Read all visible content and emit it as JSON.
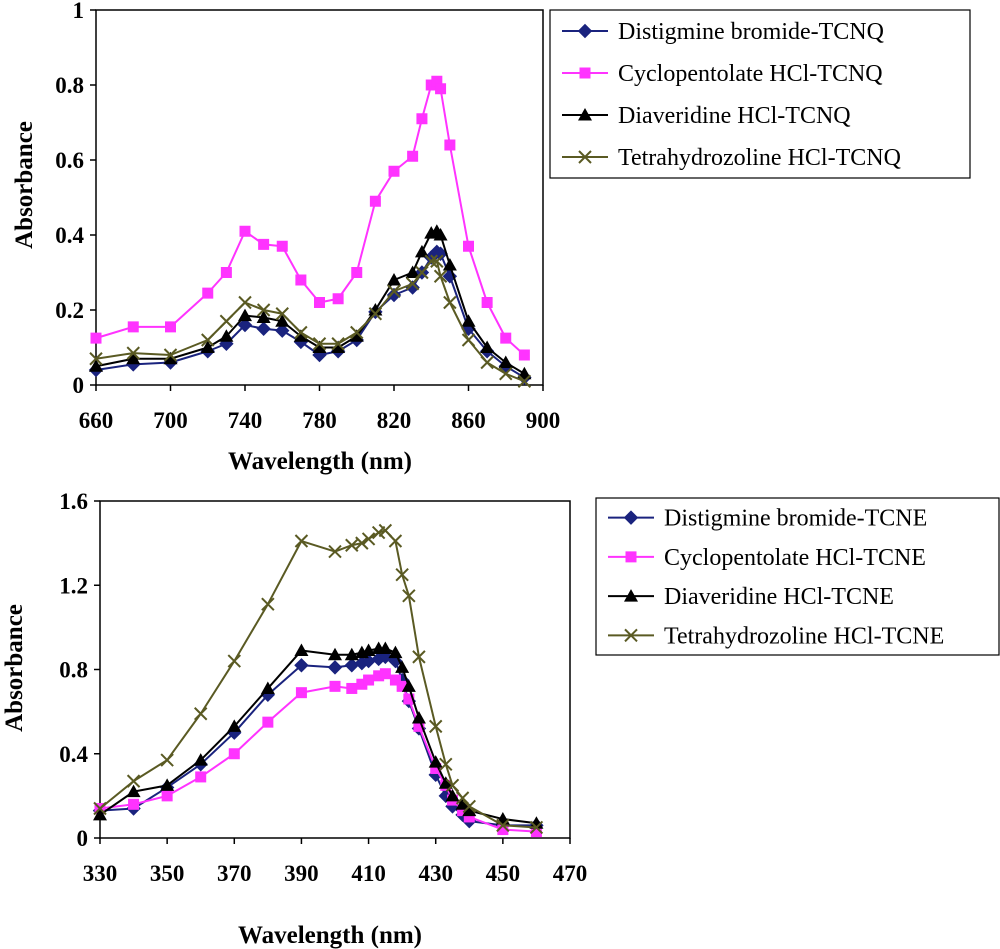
{
  "chart_data": [
    {
      "type": "line",
      "xlabel": "Wavelength (nm)",
      "ylabel": "Absorbance",
      "xlim": [
        660,
        900
      ],
      "ylim": [
        0,
        1
      ],
      "xticks": [
        "660",
        "700",
        "740",
        "780",
        "820",
        "860",
        "900"
      ],
      "yticks": [
        "0",
        "0.2",
        "0.4",
        "0.6",
        "0.8",
        "1"
      ],
      "grid": false,
      "legend_position": "right",
      "series": [
        {
          "name": "Distigmine bromide-TCNQ",
          "color": "#1a237e",
          "marker": "diamond",
          "x": [
            660,
            680,
            700,
            720,
            730,
            740,
            750,
            760,
            770,
            780,
            790,
            800,
            810,
            820,
            830,
            835,
            840,
            843,
            845,
            850,
            860,
            870,
            880,
            890
          ],
          "y": [
            0.04,
            0.055,
            0.06,
            0.09,
            0.11,
            0.16,
            0.15,
            0.145,
            0.115,
            0.08,
            0.09,
            0.12,
            0.195,
            0.24,
            0.26,
            0.3,
            0.34,
            0.355,
            0.35,
            0.29,
            0.15,
            0.09,
            0.05,
            0.02
          ]
        },
        {
          "name": "Cyclopentolate HCl-TCNQ",
          "color": "#ff33ff",
          "marker": "square",
          "x": [
            660,
            680,
            700,
            720,
            730,
            740,
            750,
            760,
            770,
            780,
            790,
            800,
            810,
            820,
            830,
            835,
            840,
            843,
            845,
            850,
            860,
            870,
            880,
            890
          ],
          "y": [
            0.125,
            0.155,
            0.155,
            0.245,
            0.3,
            0.41,
            0.375,
            0.37,
            0.28,
            0.22,
            0.23,
            0.3,
            0.49,
            0.57,
            0.61,
            0.71,
            0.8,
            0.81,
            0.79,
            0.64,
            0.37,
            0.22,
            0.125,
            0.08
          ]
        },
        {
          "name": "Diaveridine HCl-TCNQ",
          "color": "#000000",
          "marker": "triangle",
          "x": [
            660,
            680,
            700,
            720,
            730,
            740,
            750,
            760,
            770,
            780,
            790,
            800,
            810,
            820,
            830,
            835,
            840,
            843,
            845,
            850,
            860,
            870,
            880,
            890
          ],
          "y": [
            0.05,
            0.07,
            0.07,
            0.1,
            0.13,
            0.185,
            0.18,
            0.17,
            0.13,
            0.1,
            0.1,
            0.13,
            0.2,
            0.28,
            0.3,
            0.355,
            0.405,
            0.41,
            0.4,
            0.32,
            0.17,
            0.1,
            0.06,
            0.03
          ]
        },
        {
          "name": "Tetrahydrozoline HCl-TCNQ",
          "color": "#5a5a23",
          "marker": "x",
          "x": [
            660,
            680,
            700,
            720,
            730,
            740,
            750,
            760,
            770,
            780,
            790,
            800,
            810,
            820,
            830,
            835,
            840,
            843,
            845,
            850,
            860,
            870,
            880,
            890
          ],
          "y": [
            0.07,
            0.085,
            0.08,
            0.12,
            0.17,
            0.22,
            0.2,
            0.19,
            0.14,
            0.11,
            0.11,
            0.14,
            0.19,
            0.25,
            0.27,
            0.3,
            0.33,
            0.33,
            0.29,
            0.22,
            0.12,
            0.06,
            0.03,
            0.01
          ]
        }
      ]
    },
    {
      "type": "line",
      "xlabel": "Wavelength (nm)",
      "ylabel": "Absorbance",
      "xlim": [
        330,
        470
      ],
      "ylim": [
        0,
        1.6
      ],
      "xticks": [
        "330",
        "350",
        "370",
        "390",
        "410",
        "430",
        "450",
        "470"
      ],
      "yticks": [
        "0",
        "0.4",
        "0.8",
        "1.2",
        "1.6"
      ],
      "grid": false,
      "legend_position": "right",
      "series": [
        {
          "name": "Distigmine bromide-TCNE",
          "color": "#1a237e",
          "marker": "diamond",
          "x": [
            330,
            340,
            350,
            360,
            370,
            380,
            390,
            400,
            405,
            408,
            410,
            413,
            415,
            418,
            420,
            422,
            425,
            430,
            433,
            435,
            438,
            440,
            450,
            460
          ],
          "y": [
            0.13,
            0.14,
            0.24,
            0.35,
            0.5,
            0.68,
            0.82,
            0.81,
            0.82,
            0.83,
            0.84,
            0.85,
            0.86,
            0.84,
            0.75,
            0.65,
            0.52,
            0.3,
            0.2,
            0.15,
            0.11,
            0.08,
            0.06,
            0.06
          ]
        },
        {
          "name": "Cyclopentolate HCl-TCNE",
          "color": "#ff33ff",
          "marker": "square",
          "x": [
            330,
            340,
            350,
            360,
            370,
            380,
            390,
            400,
            405,
            408,
            410,
            413,
            415,
            418,
            420,
            422,
            425,
            430,
            433,
            435,
            438,
            440,
            450,
            460
          ],
          "y": [
            0.14,
            0.16,
            0.2,
            0.29,
            0.4,
            0.55,
            0.69,
            0.72,
            0.71,
            0.73,
            0.75,
            0.77,
            0.78,
            0.75,
            0.72,
            0.66,
            0.53,
            0.33,
            0.25,
            0.18,
            0.13,
            0.1,
            0.04,
            0.03
          ]
        },
        {
          "name": "Diaveridine HCl-TCNE",
          "color": "#000000",
          "marker": "triangle",
          "x": [
            330,
            340,
            350,
            360,
            370,
            380,
            390,
            400,
            405,
            408,
            410,
            413,
            415,
            418,
            420,
            422,
            425,
            430,
            433,
            435,
            438,
            440,
            450,
            460
          ],
          "y": [
            0.11,
            0.22,
            0.25,
            0.37,
            0.53,
            0.71,
            0.89,
            0.87,
            0.87,
            0.88,
            0.89,
            0.9,
            0.9,
            0.88,
            0.81,
            0.72,
            0.57,
            0.36,
            0.26,
            0.2,
            0.16,
            0.13,
            0.09,
            0.07
          ]
        },
        {
          "name": "Tetrahydrozoline HCl-TCNE",
          "color": "#5a5a23",
          "marker": "x",
          "x": [
            330,
            340,
            350,
            360,
            370,
            380,
            390,
            400,
            405,
            408,
            410,
            413,
            415,
            418,
            420,
            422,
            425,
            430,
            433,
            435,
            438,
            440,
            450,
            460
          ],
          "y": [
            0.14,
            0.27,
            0.37,
            0.59,
            0.84,
            1.11,
            1.41,
            1.36,
            1.39,
            1.4,
            1.42,
            1.45,
            1.46,
            1.41,
            1.25,
            1.15,
            0.86,
            0.53,
            0.35,
            0.25,
            0.19,
            0.15,
            0.06,
            0.05
          ]
        }
      ]
    }
  ]
}
